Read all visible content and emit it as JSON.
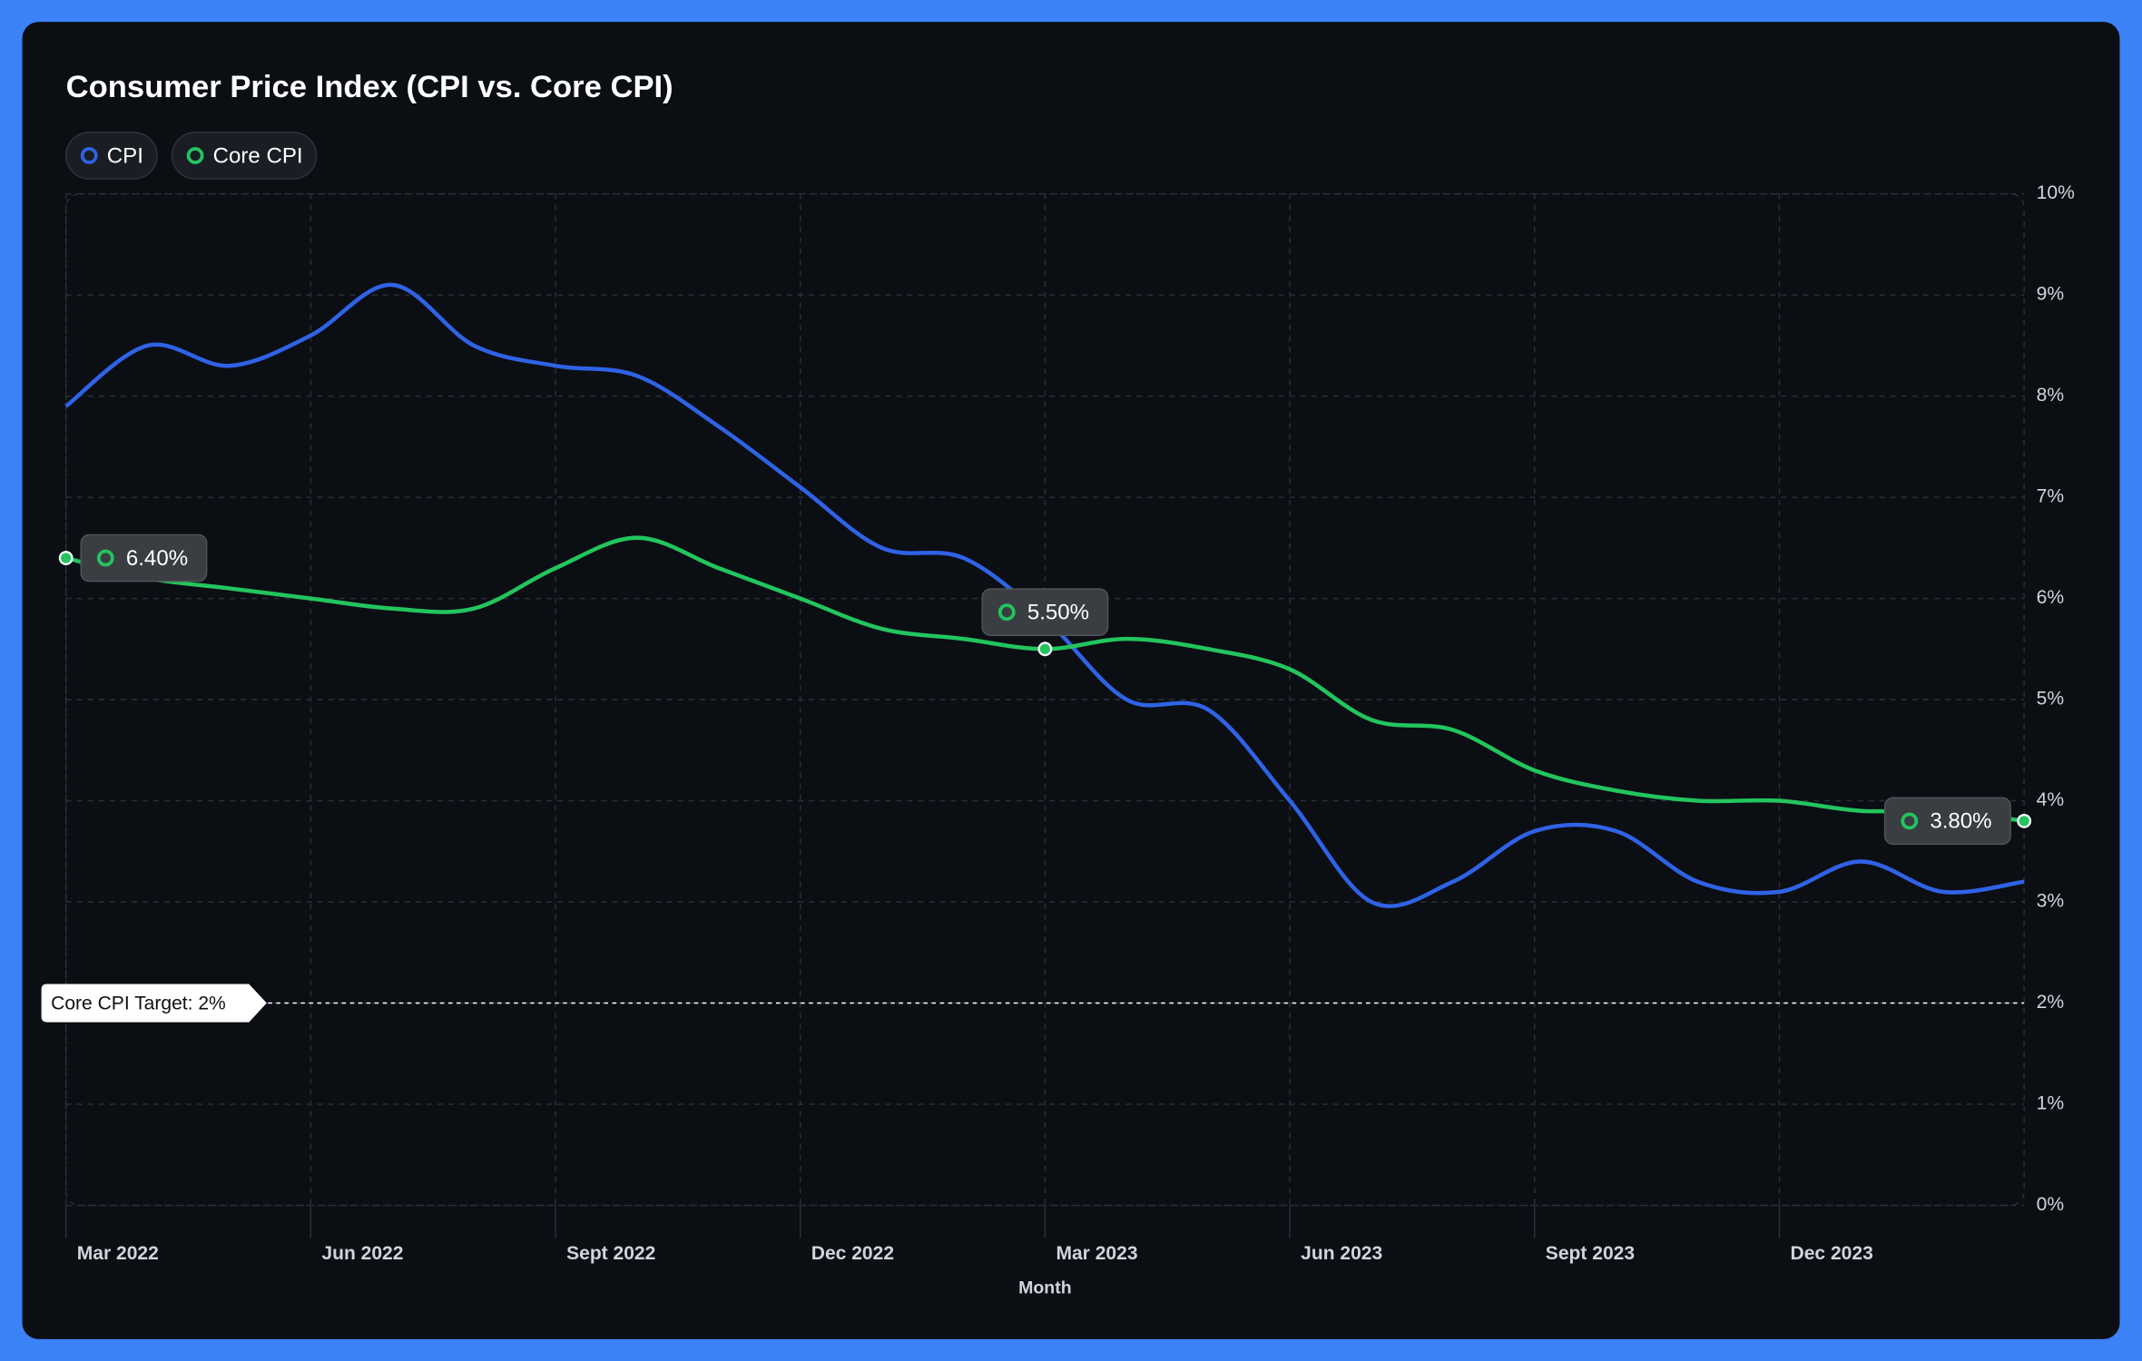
{
  "chart_data": {
    "type": "line",
    "title": "Consumer Price Index (CPI vs. Core CPI)",
    "x_label": "Month",
    "categories": [
      "Mar 2022",
      null,
      null,
      "Jun 2022",
      null,
      null,
      "Sept 2022",
      null,
      null,
      "Dec 2022",
      null,
      null,
      "Mar 2023",
      null,
      null,
      "Jun 2023",
      null,
      null,
      "Sept 2023",
      null,
      null,
      "Dec 2023",
      null,
      null,
      null
    ],
    "series": [
      {
        "name": "CPI",
        "color": "#2f63e6",
        "values": [
          7.9,
          8.5,
          8.3,
          8.6,
          9.1,
          8.5,
          8.3,
          8.2,
          7.7,
          7.1,
          6.5,
          6.4,
          5.8,
          5.0,
          4.9,
          4.0,
          3.0,
          3.2,
          3.7,
          3.7,
          3.2,
          3.1,
          3.4,
          3.1,
          3.2
        ]
      },
      {
        "name": "Core CPI",
        "color": "#22c55e",
        "values": [
          6.4,
          6.2,
          6.1,
          6.0,
          5.9,
          5.9,
          6.3,
          6.6,
          6.3,
          6.0,
          5.7,
          5.6,
          5.5,
          5.6,
          5.5,
          5.3,
          4.8,
          4.7,
          4.3,
          4.1,
          4.0,
          4.0,
          3.9,
          3.9,
          3.8
        ],
        "value_labels": [
          "6.40%",
          null,
          null,
          null,
          null,
          null,
          null,
          null,
          null,
          null,
          null,
          null,
          "5.50%",
          null,
          null,
          null,
          null,
          null,
          null,
          null,
          null,
          null,
          null,
          null,
          "3.80%"
        ]
      }
    ],
    "ylim": [
      0,
      10
    ],
    "yticks": [
      {
        "value": 0,
        "label": "0%"
      },
      {
        "value": 1,
        "label": "1%"
      },
      {
        "value": 2,
        "label": "2%"
      },
      {
        "value": 3,
        "label": "3%"
      },
      {
        "value": 4,
        "label": "4%"
      },
      {
        "value": 5,
        "label": "5%"
      },
      {
        "value": 6,
        "label": "6%"
      },
      {
        "value": 7,
        "label": "7%"
      },
      {
        "value": 8,
        "label": "8%"
      },
      {
        "value": 9,
        "label": "9%"
      },
      {
        "value": 10,
        "label": "10%"
      }
    ],
    "grid": true,
    "target": {
      "label": "Core CPI Target: 2%",
      "value": 2
    }
  }
}
